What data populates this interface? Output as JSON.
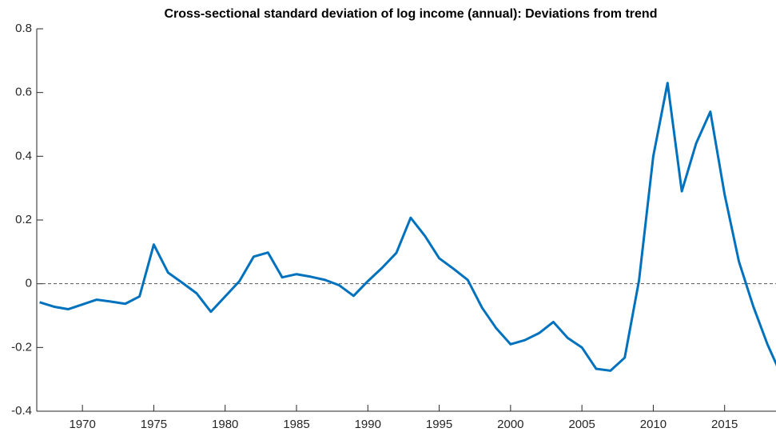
{
  "chart_data": {
    "type": "line",
    "title": "Cross-sectional standard deviation of log income (annual): Deviations from trend",
    "x": [
      1967,
      1968,
      1969,
      1970,
      1971,
      1972,
      1973,
      1974,
      1975,
      1976,
      1977,
      1978,
      1979,
      1980,
      1981,
      1982,
      1983,
      1984,
      1985,
      1986,
      1987,
      1988,
      1989,
      1990,
      1991,
      1992,
      1993,
      1994,
      1995,
      1996,
      1997,
      1998,
      1999,
      2000,
      2001,
      2002,
      2003,
      2004,
      2005,
      2006,
      2007,
      2008,
      2009,
      2010,
      2011,
      2012,
      2013,
      2014,
      2015,
      2016,
      2017,
      2018,
      2019
    ],
    "series": [
      {
        "color": "#0072bd",
        "values": [
          -0.058,
          -0.072,
          -0.08,
          -0.065,
          -0.05,
          -0.056,
          -0.063,
          -0.04,
          0.123,
          0.035,
          0.003,
          -0.03,
          -0.088,
          -0.04,
          0.008,
          0.085,
          0.098,
          0.02,
          0.03,
          0.022,
          0.012,
          -0.005,
          -0.038,
          0.008,
          0.05,
          0.097,
          0.207,
          0.15,
          0.08,
          0.047,
          0.012,
          -0.075,
          -0.14,
          -0.19,
          -0.177,
          -0.155,
          -0.12,
          -0.17,
          -0.2,
          -0.267,
          -0.273,
          -0.232,
          0.01,
          0.4,
          0.63,
          0.29,
          0.44,
          0.54,
          0.28,
          0.07,
          -0.07,
          -0.19,
          -0.29
        ]
      }
    ],
    "xlim": [
      1966.8,
      2018.6
    ],
    "xticks": [
      1970,
      1975,
      1980,
      1985,
      1990,
      1995,
      2000,
      2005,
      2010,
      2015
    ],
    "ylim": [
      -0.4,
      0.8
    ],
    "yticks": [
      -0.4,
      -0.2,
      0,
      0.2,
      0.4,
      0.6,
      0.8
    ],
    "reference_line": 0
  }
}
